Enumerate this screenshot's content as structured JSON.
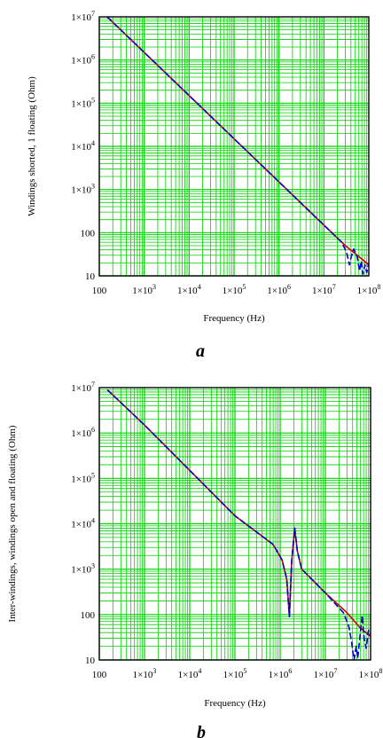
{
  "chart_data": [
    {
      "type": "line",
      "panel_label": "a",
      "xlabel": "Frequency (Hz)",
      "ylabel": "Windings shorted, 1 floating (Ohm)",
      "xscale": "log",
      "yscale": "log",
      "xlim": [
        100,
        100000000
      ],
      "ylim": [
        10,
        10000000
      ],
      "grid": true,
      "grid_color": "#00d000",
      "x_ticks": [
        {
          "base": "100",
          "exp": ""
        },
        {
          "base": "1×10",
          "exp": "3"
        },
        {
          "base": "1×10",
          "exp": "4"
        },
        {
          "base": "1×10",
          "exp": "5"
        },
        {
          "base": "1×10",
          "exp": "6"
        },
        {
          "base": "1×10",
          "exp": "7"
        },
        {
          "base": "1×10",
          "exp": "8"
        }
      ],
      "y_ticks": [
        {
          "base": "10",
          "exp": ""
        },
        {
          "base": "100",
          "exp": ""
        },
        {
          "base": "1×10",
          "exp": "3"
        },
        {
          "base": "1×10",
          "exp": "4"
        },
        {
          "base": "1×10",
          "exp": "5"
        },
        {
          "base": "1×10",
          "exp": "6"
        },
        {
          "base": "1×10",
          "exp": "7"
        }
      ],
      "series": [
        {
          "color": "#d00000",
          "style": "solid",
          "points": [
            [
              150,
              10000000
            ],
            [
              1000,
              1500000
            ],
            [
              10000,
              150000
            ],
            [
              100000,
              15000
            ],
            [
              1000000,
              1500
            ],
            [
              10000000,
              150
            ],
            [
              30000000,
              50
            ],
            [
              60000000,
              28
            ],
            [
              100000000,
              18
            ]
          ]
        },
        {
          "color": "#0000c8",
          "style": "dashed",
          "points": [
            [
              150,
              10000000
            ],
            [
              1000,
              1500000
            ],
            [
              10000,
              150000
            ],
            [
              100000,
              15000
            ],
            [
              1000000,
              1500
            ],
            [
              10000000,
              150
            ],
            [
              25000000,
              60
            ],
            [
              32000000,
              35
            ],
            [
              37000000,
              18
            ],
            [
              40000000,
              26
            ],
            [
              46000000,
              42
            ],
            [
              55000000,
              28
            ],
            [
              62000000,
              13
            ],
            [
              68000000,
              22
            ],
            [
              74000000,
              11
            ],
            [
              82000000,
              18
            ],
            [
              90000000,
              12
            ],
            [
              100000000,
              20
            ]
          ]
        }
      ]
    },
    {
      "type": "line",
      "panel_label": "b",
      "xlabel": "Frequency (Hz)",
      "ylabel": "Inter-windings, windings open and floating (Ohm)",
      "xscale": "log",
      "yscale": "log",
      "xlim": [
        100,
        100000000
      ],
      "ylim": [
        10,
        10000000
      ],
      "grid": true,
      "grid_color": "#00d000",
      "x_ticks": [
        {
          "base": "100",
          "exp": ""
        },
        {
          "base": "1×10",
          "exp": "3"
        },
        {
          "base": "1×10",
          "exp": "4"
        },
        {
          "base": "1×10",
          "exp": "5"
        },
        {
          "base": "1×10",
          "exp": "6"
        },
        {
          "base": "1×10",
          "exp": "7"
        },
        {
          "base": "1×10",
          "exp": "8"
        }
      ],
      "y_ticks": [
        {
          "base": "10",
          "exp": ""
        },
        {
          "base": "100",
          "exp": ""
        },
        {
          "base": "1×10",
          "exp": "3"
        },
        {
          "base": "1×10",
          "exp": "4"
        },
        {
          "base": "1×10",
          "exp": "5"
        },
        {
          "base": "1×10",
          "exp": "6"
        },
        {
          "base": "1×10",
          "exp": "7"
        }
      ],
      "series": [
        {
          "color": "#d00000",
          "style": "solid",
          "points": [
            [
              150,
              9000000
            ],
            [
              1000,
              1500000
            ],
            [
              10000,
              150000
            ],
            [
              100000,
              15000
            ],
            [
              700000,
              3500
            ],
            [
              1100000,
              1600
            ],
            [
              1400000,
              600
            ],
            [
              1600000,
              90
            ],
            [
              1800000,
              1500
            ],
            [
              2100000,
              8000
            ],
            [
              2400000,
              2500
            ],
            [
              3000000,
              1000
            ],
            [
              10000000,
              300
            ],
            [
              30000000,
              110
            ],
            [
              60000000,
              50
            ],
            [
              100000000,
              33
            ]
          ]
        },
        {
          "color": "#0000c8",
          "style": "dashed",
          "points": [
            [
              150,
              9000000
            ],
            [
              1000,
              1500000
            ],
            [
              10000,
              150000
            ],
            [
              100000,
              15000
            ],
            [
              700000,
              3500
            ],
            [
              1100000,
              1600
            ],
            [
              1400000,
              600
            ],
            [
              1600000,
              90
            ],
            [
              1800000,
              1500
            ],
            [
              2100000,
              8000
            ],
            [
              2400000,
              2500
            ],
            [
              3000000,
              1000
            ],
            [
              10000000,
              300
            ],
            [
              25000000,
              110
            ],
            [
              33000000,
              55
            ],
            [
              38000000,
              25
            ],
            [
              43000000,
              10
            ],
            [
              48000000,
              20
            ],
            [
              52000000,
              11
            ],
            [
              58000000,
              32
            ],
            [
              65000000,
              95
            ],
            [
              72000000,
              30
            ],
            [
              80000000,
              18
            ],
            [
              90000000,
              45
            ],
            [
              100000000,
              33
            ]
          ]
        }
      ]
    }
  ]
}
